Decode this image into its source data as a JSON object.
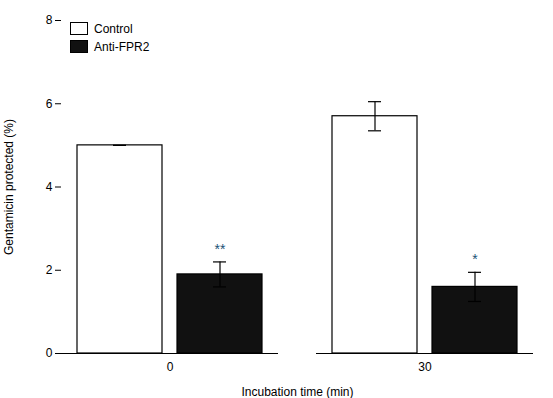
{
  "chart_data": {
    "type": "bar",
    "categories": [
      "0",
      "30"
    ],
    "series": [
      {
        "name": "Control",
        "color": "#ffffff",
        "values": [
          5.0,
          5.7
        ],
        "errors": [
          0.0,
          0.35
        ]
      },
      {
        "name": "Anti-FPR2",
        "color": "#111111",
        "values": [
          1.9,
          1.6
        ],
        "errors": [
          0.3,
          0.35
        ]
      }
    ],
    "edge_color": "#000000",
    "xlabel": "Incubation time (min)",
    "ylabel": "Gentamicin protected (%)",
    "ylim": [
      0,
      8
    ],
    "yticks": [
      0,
      2,
      4,
      6,
      8
    ],
    "legend": "upper left",
    "annotations": [
      {
        "text": "**",
        "category": "0",
        "series": "Anti-FPR2",
        "color": "#1a5276"
      },
      {
        "text": "*",
        "category": "30",
        "series": "Anti-FPR2",
        "color": "#1a5276"
      }
    ]
  }
}
